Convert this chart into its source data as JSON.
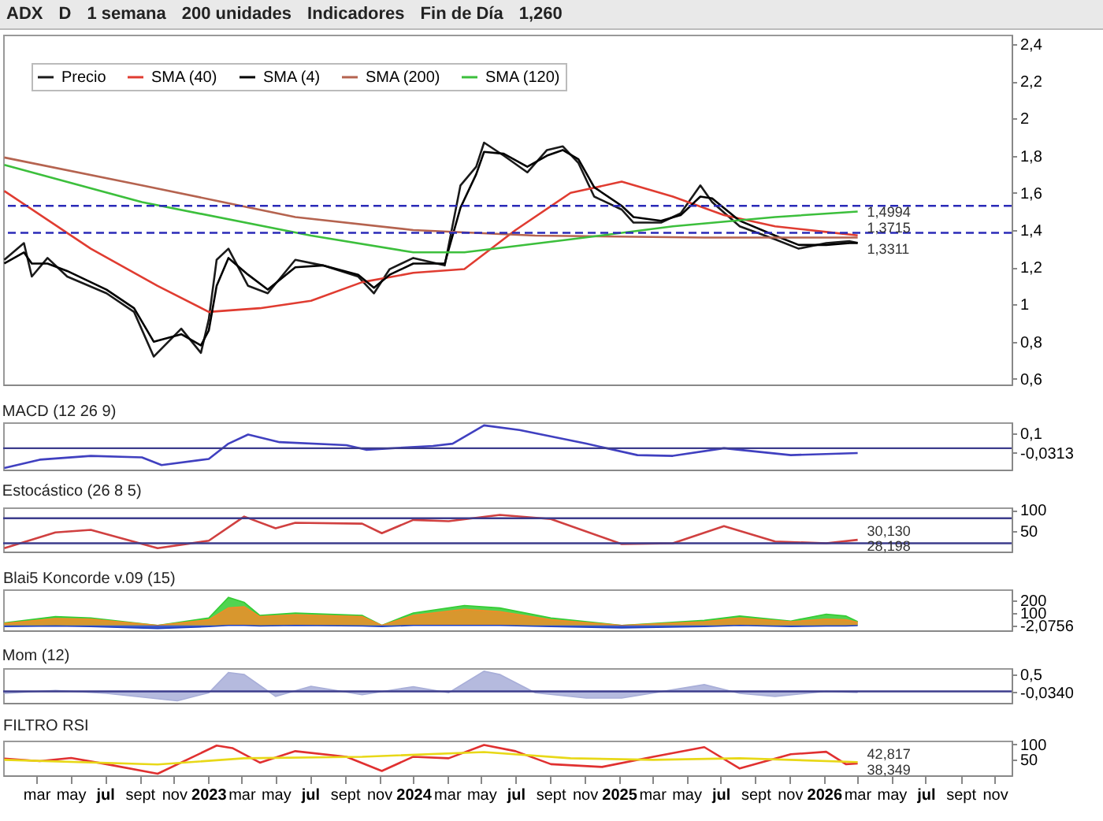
{
  "chart_data": [
    {
      "type": "line",
      "title": "ADX",
      "annotations": [
        "D",
        "1 semana",
        "200 unidades",
        "Indicadores",
        "Fin de Día",
        {
          "text": "1,4994",
          "x": "2026-03-02",
          "y": 1.4994
        },
        {
          "text": "1,3715",
          "x": "2026-03-02",
          "y": 1.3715
        },
        {
          "text": "1,3311",
          "x": "2026-03-02",
          "y": 1.3311
        },
        "1,260"
      ],
      "xlim": [
        "2022-01-01",
        "2026-12-01"
      ],
      "ylim": [
        0.57,
        2.45
      ],
      "yticks": [
        {
          "value": 0.6,
          "label": "0,6"
        },
        {
          "value": 0.8,
          "label": "0,8"
        },
        1,
        {
          "value": 1.2,
          "label": "1,2"
        },
        {
          "value": 1.4,
          "label": "1,4"
        },
        {
          "value": 1.6,
          "label": "1,6"
        },
        {
          "value": 1.8,
          "label": "1,8"
        },
        2,
        {
          "value": 2.2,
          "label": "2,2"
        },
        {
          "value": 2.4,
          "label": "2,4"
        }
      ],
      "tick_labels": "y",
      "legend": "top left",
      "ref_lines": [
        {
          "axis": "y",
          "value": 1.53,
          "color": "#2a2ab8",
          "line_style": "dashed"
        },
        {
          "axis": "y",
          "value": 1.385,
          "color": "#2a2ab8",
          "line_style": "dashed"
        }
      ],
      "series": [
        {
          "name": "Precio",
          "color": "#1a1a1a",
          "x": [
            "2022-01-03",
            "2022-02-07",
            "2022-02-21",
            "2022-03-21",
            "2022-04-25",
            "2022-07-04",
            "2022-08-22",
            "2022-09-26",
            "2022-11-14",
            "2022-12-19",
            "2023-01-02",
            "2023-01-16",
            "2023-02-06",
            "2023-03-13",
            "2023-04-17",
            "2023-06-05",
            "2023-07-24",
            "2023-09-25",
            "2023-10-23",
            "2023-11-20",
            "2024-01-01",
            "2024-02-26",
            "2024-03-25",
            "2024-04-22",
            "2024-05-06",
            "2024-06-10",
            "2024-07-22",
            "2024-08-26",
            "2024-09-23",
            "2024-10-21",
            "2024-11-18",
            "2025-01-06",
            "2025-01-27",
            "2025-03-17",
            "2025-04-21",
            "2025-05-26",
            "2025-06-16",
            "2025-08-04",
            "2025-10-06",
            "2025-11-17",
            "2026-01-05",
            "2026-02-16",
            "2026-03-02"
          ],
          "values": [
            1.24,
            1.33,
            1.15,
            1.25,
            1.15,
            1.06,
            0.96,
            0.72,
            0.87,
            0.74,
            0.92,
            1.24,
            1.3,
            1.1,
            1.06,
            1.24,
            1.21,
            1.15,
            1.06,
            1.19,
            1.25,
            1.21,
            1.64,
            1.74,
            1.87,
            1.8,
            1.71,
            1.83,
            1.85,
            1.76,
            1.58,
            1.51,
            1.44,
            1.44,
            1.49,
            1.64,
            1.55,
            1.42,
            1.35,
            1.3,
            1.33,
            1.34,
            1.3311
          ]
        },
        {
          "name": "SMA (40)",
          "color": "#e03c31",
          "x": [
            "2022-01-03",
            "2022-06-06",
            "2022-10-03",
            "2023-01-02",
            "2023-04-03",
            "2023-07-03",
            "2023-10-02",
            "2024-01-01",
            "2024-04-01",
            "2024-07-01",
            "2024-10-07",
            "2025-01-06",
            "2025-04-07",
            "2025-07-07",
            "2025-10-06",
            "2026-01-05",
            "2026-03-02"
          ],
          "values": [
            1.61,
            1.3,
            1.1,
            0.96,
            0.98,
            1.02,
            1.12,
            1.17,
            1.19,
            1.4,
            1.6,
            1.66,
            1.58,
            1.48,
            1.42,
            1.39,
            1.3715
          ]
        },
        {
          "name": "SMA (4)",
          "color": "#000000",
          "x": [
            "2022-01-03",
            "2022-02-07",
            "2022-02-21",
            "2022-03-21",
            "2022-04-25",
            "2022-07-04",
            "2022-08-22",
            "2022-09-26",
            "2022-11-14",
            "2022-12-19",
            "2023-01-02",
            "2023-01-16",
            "2023-02-06",
            "2023-03-13",
            "2023-04-17",
            "2023-06-05",
            "2023-07-24",
            "2023-09-25",
            "2023-10-23",
            "2023-11-20",
            "2024-01-01",
            "2024-02-26",
            "2024-03-25",
            "2024-04-22",
            "2024-05-06",
            "2024-06-10",
            "2024-07-22",
            "2024-08-26",
            "2024-09-23",
            "2024-10-21",
            "2024-11-18",
            "2025-01-06",
            "2025-01-27",
            "2025-03-17",
            "2025-04-21",
            "2025-05-26",
            "2025-06-16",
            "2025-08-04",
            "2025-10-06",
            "2025-11-17",
            "2026-01-05",
            "2026-02-16",
            "2026-03-02"
          ],
          "values": [
            1.22,
            1.28,
            1.22,
            1.22,
            1.18,
            1.08,
            0.98,
            0.8,
            0.84,
            0.78,
            0.86,
            1.1,
            1.25,
            1.16,
            1.08,
            1.2,
            1.21,
            1.16,
            1.09,
            1.16,
            1.22,
            1.22,
            1.52,
            1.7,
            1.82,
            1.81,
            1.74,
            1.8,
            1.83,
            1.78,
            1.63,
            1.53,
            1.47,
            1.45,
            1.48,
            1.58,
            1.57,
            1.45,
            1.37,
            1.32,
            1.32,
            1.33,
            1.33
          ]
        },
        {
          "name": "SMA (200)",
          "color": "#b5634f",
          "x": [
            "2022-01-03",
            "2022-09-05",
            "2023-06-05",
            "2024-01-01",
            "2024-08-05",
            "2025-06-02",
            "2026-03-02"
          ],
          "values": [
            1.79,
            1.64,
            1.47,
            1.4,
            1.37,
            1.36,
            1.36
          ]
        },
        {
          "name": "SMA (120)",
          "color": "#3cbf3c",
          "x": [
            "2022-01-03",
            "2022-09-05",
            "2023-07-03",
            "2024-01-01",
            "2024-04-01",
            "2024-10-07",
            "2025-04-07",
            "2025-10-06",
            "2026-03-02"
          ],
          "values": [
            1.75,
            1.55,
            1.37,
            1.28,
            1.28,
            1.35,
            1.42,
            1.47,
            1.4994
          ]
        }
      ]
    },
    {
      "type": "line",
      "title": "MACD (12 26 9)",
      "xlim": [
        "2022-01-01",
        "2026-12-01"
      ],
      "ylim": [
        -0.14,
        0.17
      ],
      "yticks": [
        {
          "value": 0.1,
          "label": "0,1"
        },
        {
          "value": -0.0313,
          "label": "-0,0313"
        }
      ],
      "tick_labels": "y",
      "ref_lines": [
        {
          "axis": "y",
          "value": 0,
          "color": "#3c3c8c"
        }
      ],
      "series": [
        {
          "color": "#4040c0",
          "x": [
            "2022-01-03",
            "2022-03-07",
            "2022-06-06",
            "2022-09-05",
            "2022-10-10",
            "2023-01-02",
            "2023-02-06",
            "2023-03-13",
            "2023-05-08",
            "2023-09-04",
            "2023-10-09",
            "2024-02-05",
            "2024-03-11",
            "2024-05-06",
            "2024-07-08",
            "2024-11-04",
            "2025-02-03",
            "2025-04-07",
            "2025-07-07",
            "2025-11-03",
            "2026-03-02"
          ],
          "values": [
            -0.13,
            -0.075,
            -0.05,
            -0.06,
            -0.11,
            -0.07,
            0.03,
            0.09,
            0.04,
            0.02,
            -0.01,
            0.015,
            0.03,
            0.15,
            0.12,
            0.03,
            -0.045,
            -0.05,
            0,
            -0.045,
            -0.0313
          ]
        }
      ]
    },
    {
      "type": "line",
      "title": "Estocástico (26 8 5)",
      "xlim": [
        "2022-01-01",
        "2026-12-01"
      ],
      "ylim": [
        0,
        106
      ],
      "yticks": [
        100,
        50
      ],
      "tick_labels": "y",
      "annotations": [
        {
          "text": "30,130",
          "x": "2026-03-02",
          "y": 30.13
        },
        {
          "text": "28,198",
          "x": "2026-03-02",
          "y": 28.198
        }
      ],
      "ref_lines": [
        {
          "axis": "y",
          "value": 80,
          "color": "#3c3c8c"
        },
        {
          "axis": "y",
          "value": 20,
          "color": "#3c3c8c"
        }
      ],
      "series": [
        {
          "color": "#d04040",
          "x": [
            "2022-01-03",
            "2022-04-04",
            "2022-06-06",
            "2022-10-03",
            "2023-01-02",
            "2023-03-06",
            "2023-05-01",
            "2023-06-05",
            "2023-10-02",
            "2023-11-06",
            "2024-01-01",
            "2024-03-04",
            "2024-06-03",
            "2024-09-02",
            "2025-01-06",
            "2025-04-07",
            "2025-07-07",
            "2025-10-06",
            "2026-01-05",
            "2026-03-02"
          ],
          "values": [
            8,
            46,
            52,
            8,
            26,
            84,
            56,
            69,
            67,
            44,
            76,
            73,
            88,
            78,
            18,
            20,
            61,
            24,
            20,
            28.198
          ]
        }
      ]
    },
    {
      "type": "area",
      "title": "Blai5 Koncorde v.09 (15)",
      "xlim": [
        "2022-01-01",
        "2026-12-01"
      ],
      "ylim": [
        -40,
        290
      ],
      "yticks": [
        200,
        100,
        {
          "value": -2.0756,
          "label": "-2,0756"
        }
      ],
      "tick_labels": "y",
      "x": [
        "2022-01-03",
        "2022-04-04",
        "2022-06-06",
        "2022-10-03",
        "2023-01-02",
        "2023-02-06",
        "2023-03-06",
        "2023-04-03",
        "2023-06-05",
        "2023-10-02",
        "2023-11-06",
        "2024-01-01",
        "2024-04-01",
        "2024-06-03",
        "2024-09-02",
        "2025-01-06",
        "2025-06-02",
        "2025-08-04",
        "2025-11-03",
        "2026-01-05",
        "2026-02-09",
        "2026-03-02"
      ],
      "series": [
        {
          "color": "#33cc33",
          "values": [
            20,
            70,
            60,
            0,
            60,
            225,
            185,
            80,
            100,
            80,
            0,
            100,
            160,
            140,
            60,
            0,
            40,
            75,
            35,
            90,
            75,
            30
          ]
        },
        {
          "color": "#f08c28",
          "values": [
            15,
            55,
            50,
            0,
            45,
            140,
            150,
            70,
            85,
            70,
            0,
            80,
            130,
            110,
            45,
            0,
            30,
            60,
            30,
            50,
            45,
            25
          ]
        },
        {
          "color": "#2040c0",
          "values": [
            -10,
            -5,
            -10,
            -25,
            -10,
            0,
            0,
            -5,
            0,
            -5,
            -10,
            0,
            0,
            0,
            -10,
            -20,
            -10,
            0,
            -10,
            -5,
            -5,
            -2.0756
          ]
        }
      ]
    },
    {
      "type": "area",
      "title": "Mom (12)",
      "xlim": [
        "2022-01-01",
        "2026-12-01"
      ],
      "ylim": [
        -0.34,
        0.69
      ],
      "yticks": [
        {
          "value": 0.5,
          "label": "0,5"
        },
        {
          "value": -0.034,
          "label": "-0,0340"
        }
      ],
      "tick_labels": "y",
      "ref_lines": [
        {
          "axis": "y",
          "value": 0,
          "color": "#3c3c8c"
        }
      ],
      "series": [
        {
          "color": "#a8aed8",
          "x": [
            "2022-01-03",
            "2022-04-04",
            "2022-07-04",
            "2022-11-07",
            "2023-01-02",
            "2023-02-06",
            "2023-03-06",
            "2023-05-01",
            "2023-07-03",
            "2023-10-02",
            "2024-01-01",
            "2024-03-04",
            "2024-05-06",
            "2024-06-03",
            "2024-08-05",
            "2024-11-04",
            "2025-01-06",
            "2025-06-02",
            "2025-08-04",
            "2025-10-06",
            "2026-01-05",
            "2026-03-02"
          ],
          "values": [
            -0.06,
            0.03,
            -0.06,
            -0.28,
            -0.04,
            0.56,
            0.5,
            -0.15,
            0.15,
            -0.1,
            0.14,
            -0.04,
            0.6,
            0.5,
            -0.04,
            -0.2,
            -0.2,
            0.2,
            -0.06,
            -0.15,
            0,
            -0.034
          ]
        }
      ]
    },
    {
      "type": "line",
      "title": "FILTRO RSI",
      "xlim": [
        "2022-01-01",
        "2026-12-01"
      ],
      "ylim": [
        0,
        112
      ],
      "yticks": [
        100,
        50
      ],
      "annotations": [
        {
          "text": "42,817",
          "x": "2026-03-02",
          "y": 42.817
        },
        {
          "text": "38,349",
          "x": "2026-03-02",
          "y": 38.349
        }
      ],
      "xticks": [
        {
          "value": "2022-03-01",
          "label": "mar"
        },
        {
          "value": "2022-05-01",
          "label": "may"
        },
        {
          "value": "2022-07-01",
          "label": "jul"
        },
        {
          "value": "2022-09-01",
          "label": "sept"
        },
        {
          "value": "2022-11-01",
          "label": "nov"
        },
        {
          "value": "2023-01-01",
          "label": "2023"
        },
        {
          "value": "2023-03-01",
          "label": "mar"
        },
        {
          "value": "2023-05-01",
          "label": "may"
        },
        {
          "value": "2023-07-01",
          "label": "jul"
        },
        {
          "value": "2023-09-01",
          "label": "sept"
        },
        {
          "value": "2023-11-01",
          "label": "nov"
        },
        {
          "value": "2024-01-01",
          "label": "2024"
        },
        {
          "value": "2024-03-01",
          "label": "mar"
        },
        {
          "value": "2024-05-01",
          "label": "may"
        },
        {
          "value": "2024-07-01",
          "label": "jul"
        },
        {
          "value": "2024-09-01",
          "label": "sept"
        },
        {
          "value": "2024-11-01",
          "label": "nov"
        },
        {
          "value": "2025-01-01",
          "label": "2025"
        },
        {
          "value": "2025-03-01",
          "label": "mar"
        },
        {
          "value": "2025-05-01",
          "label": "may"
        },
        {
          "value": "2025-07-01",
          "label": "jul"
        },
        {
          "value": "2025-09-01",
          "label": "sept"
        },
        {
          "value": "2025-11-01",
          "label": "nov"
        },
        {
          "value": "2026-01-01",
          "label": "2026"
        },
        {
          "value": "2026-03-01",
          "label": "mar"
        },
        {
          "value": "2026-05-01",
          "label": "may"
        },
        {
          "value": "2026-07-01",
          "label": "jul"
        },
        {
          "value": "2026-09-01",
          "label": "sept"
        },
        {
          "value": "2026-11-01",
          "label": "nov"
        }
      ],
      "series": [
        {
          "color": "#e03030",
          "x": [
            "2022-01-03",
            "2022-03-07",
            "2022-05-02",
            "2022-07-04",
            "2022-10-03",
            "2023-01-16",
            "2023-02-13",
            "2023-04-03",
            "2023-06-05",
            "2023-09-04",
            "2023-11-06",
            "2024-01-01",
            "2024-03-04",
            "2024-05-06",
            "2024-07-01",
            "2024-09-02",
            "2024-12-02",
            "2025-03-03",
            "2025-06-02",
            "2025-08-04",
            "2025-11-03",
            "2026-01-05",
            "2026-02-09",
            "2026-03-02"
          ],
          "values": [
            54,
            46,
            56,
            36,
            5,
            96,
            88,
            41,
            78,
            60,
            14,
            60,
            55,
            98,
            78,
            36,
            27,
            60,
            91,
            22,
            68,
            76,
            36,
            38.349
          ]
        },
        {
          "color": "#e8d818",
          "x": [
            "2022-01-03",
            "2022-10-03",
            "2023-03-06",
            "2023-10-02",
            "2024-05-06",
            "2024-10-07",
            "2025-03-03",
            "2025-08-04",
            "2026-03-02"
          ],
          "values": [
            50,
            35,
            55,
            60,
            75,
            55,
            50,
            55,
            42.817
          ]
        }
      ]
    }
  ]
}
